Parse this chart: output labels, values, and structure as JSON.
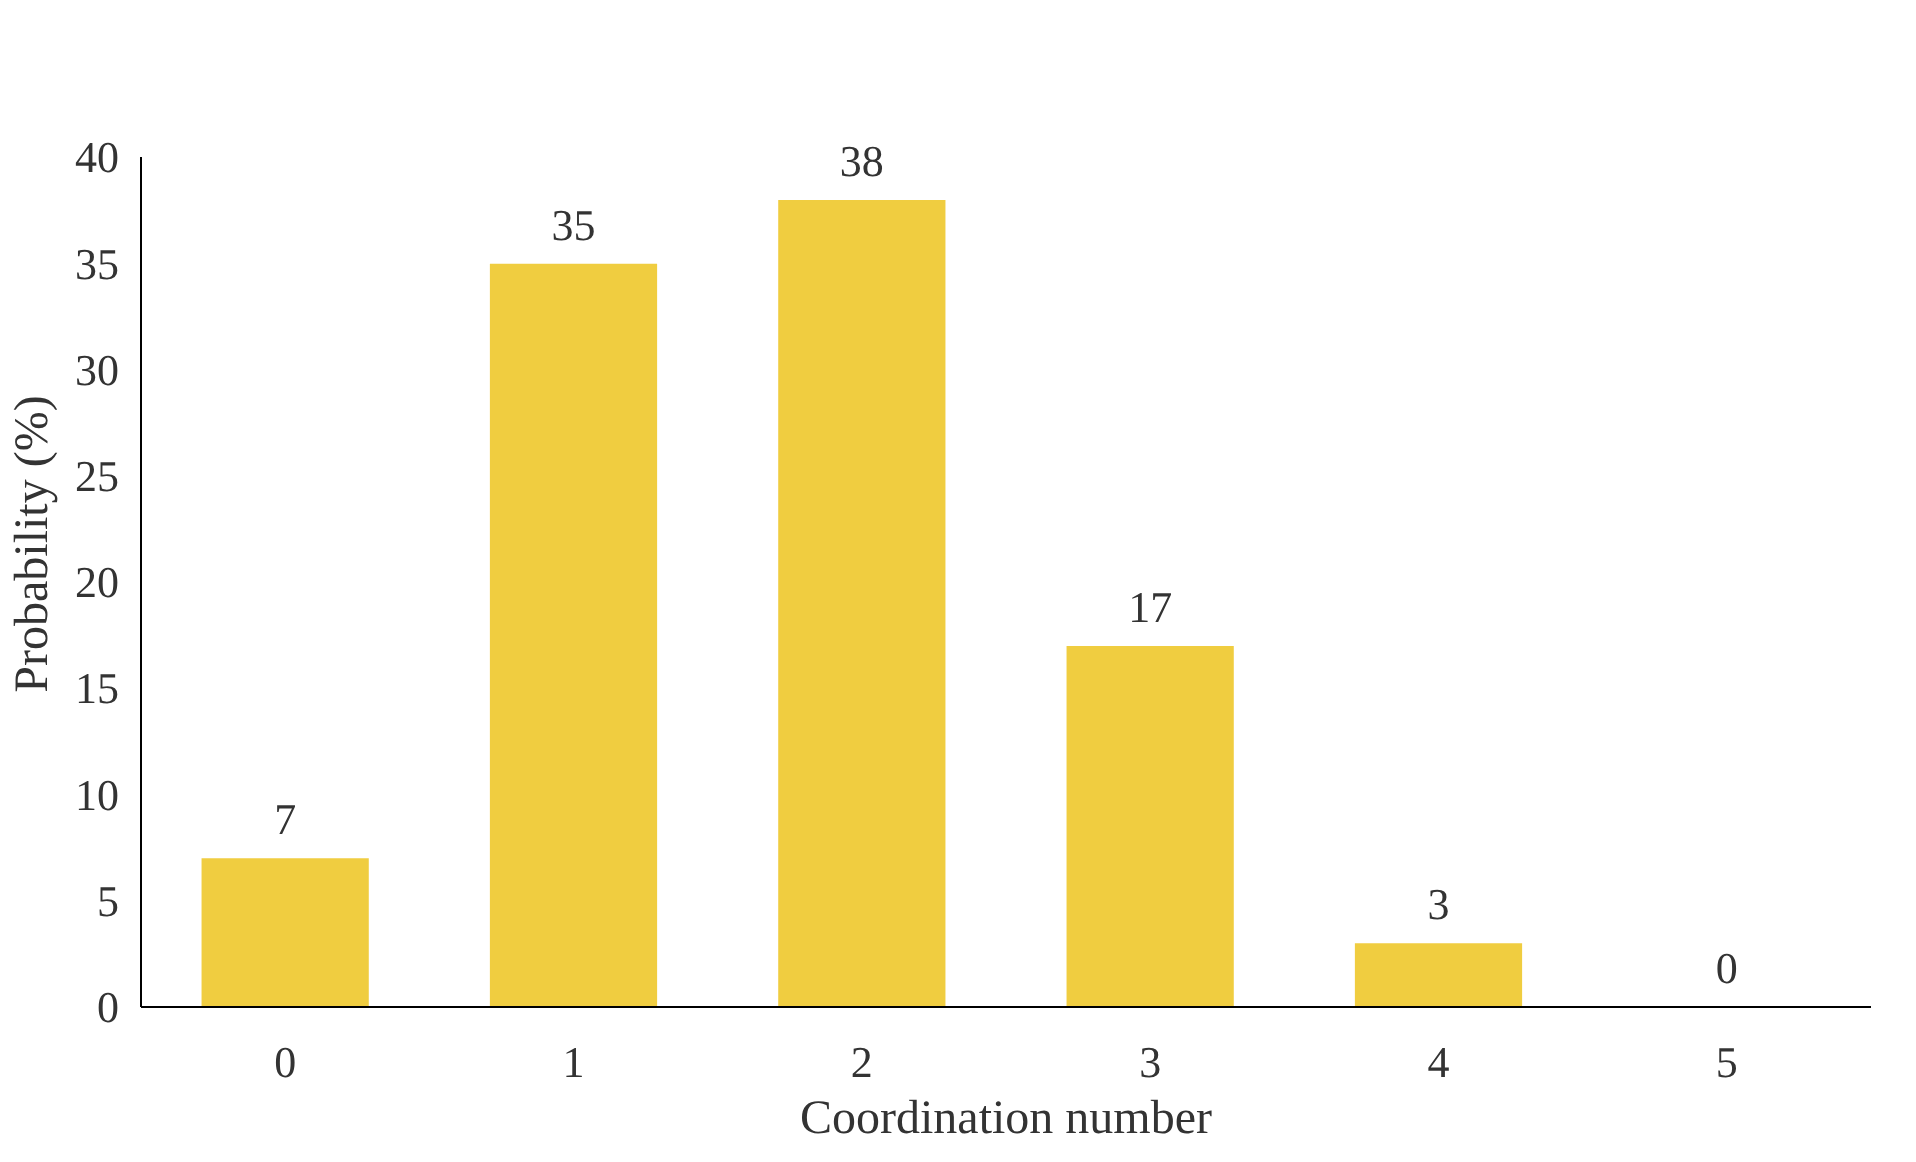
{
  "chart_data": {
    "type": "bar",
    "xlabel": "Coordination number",
    "ylabel": "Probability (%)",
    "categories": [
      "0",
      "1",
      "2",
      "3",
      "4",
      "5"
    ],
    "values": [
      7,
      35,
      38,
      17,
      3,
      0
    ],
    "color": "#f0cd40",
    "ylim": [
      0,
      40
    ],
    "yticks": [
      0,
      5,
      10,
      15,
      20,
      25,
      30,
      35,
      40
    ],
    "grid": false,
    "data_labels": true
  }
}
